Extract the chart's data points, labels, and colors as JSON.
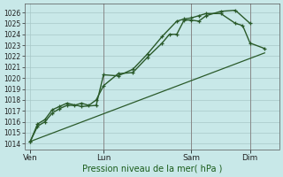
{
  "title": "",
  "xlabel": "Pression niveau de la mer( hPa )",
  "ylabel": "",
  "bg_color": "#c8e8e8",
  "grid_color": "#a8c8c8",
  "line_color": "#2a5a2a",
  "ylim": [
    1013.5,
    1026.8
  ],
  "yticks": [
    1014,
    1015,
    1016,
    1017,
    1018,
    1019,
    1020,
    1021,
    1022,
    1023,
    1024,
    1025,
    1026
  ],
  "xtick_labels": [
    "Ven",
    "Lun",
    "Sam",
    "Dim"
  ],
  "xtick_pos": [
    0.0,
    2.5,
    5.5,
    7.5
  ],
  "xlim": [
    -0.2,
    8.5
  ],
  "line1_x": [
    0,
    0.25,
    0.5,
    0.75,
    1.0,
    1.25,
    1.5,
    1.75,
    2.0,
    2.25,
    2.5,
    3.0,
    3.5,
    4.0,
    4.5,
    4.75,
    5.0,
    5.25,
    5.5,
    5.75,
    6.0,
    6.5,
    7.0,
    7.5
  ],
  "line1_y": [
    1014.2,
    1015.6,
    1016.0,
    1016.8,
    1017.2,
    1017.5,
    1017.5,
    1017.7,
    1017.5,
    1018.0,
    1019.3,
    1020.4,
    1020.5,
    1021.9,
    1023.2,
    1024.0,
    1024.0,
    1025.3,
    1025.3,
    1025.2,
    1025.7,
    1026.1,
    1026.2,
    1025.0
  ],
  "line2_x": [
    0,
    0.25,
    0.5,
    0.75,
    1.0,
    1.25,
    1.75,
    2.25,
    2.5,
    3.0,
    3.5,
    4.0,
    4.5,
    5.0,
    5.25,
    5.5,
    5.75,
    6.0,
    6.5,
    7.0,
    7.25,
    7.5,
    8.0
  ],
  "line2_y": [
    1014.2,
    1015.8,
    1016.2,
    1017.1,
    1017.4,
    1017.7,
    1017.4,
    1017.5,
    1020.3,
    1020.2,
    1020.8,
    1022.2,
    1023.8,
    1025.2,
    1025.4,
    1025.5,
    1025.7,
    1025.9,
    1025.9,
    1025.0,
    1024.8,
    1023.2,
    1022.7
  ],
  "line3_x": [
    0,
    8.0
  ],
  "line3_y": [
    1014.2,
    1022.3
  ],
  "vline_pos": [
    2.5,
    5.5,
    7.5
  ],
  "vline_color": "#888888",
  "fig_width": 3.2,
  "fig_height": 2.0,
  "dpi": 100
}
